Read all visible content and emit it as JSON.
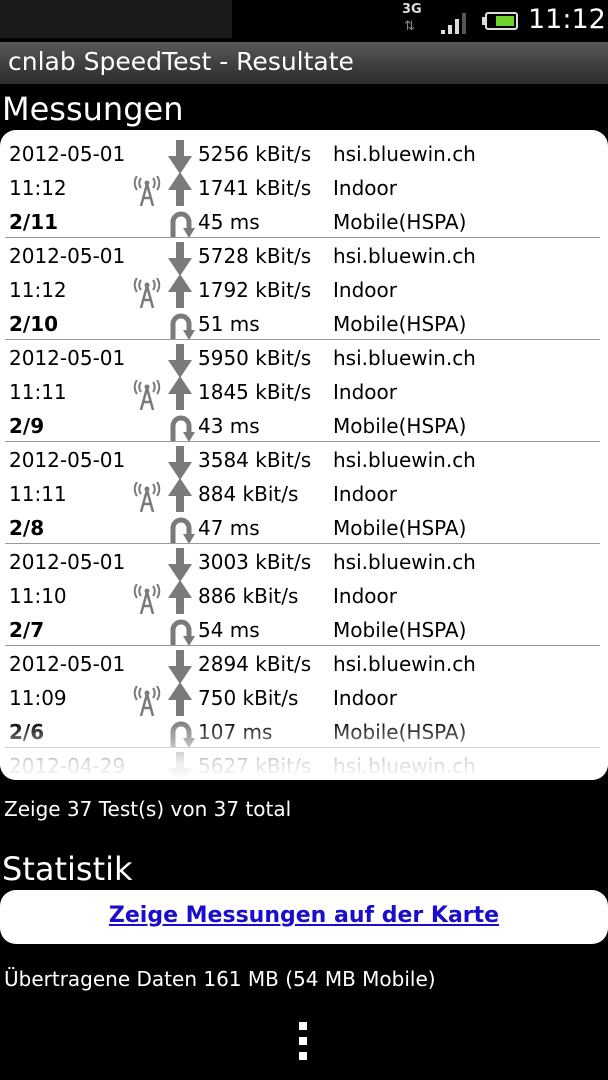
{
  "status_bar": {
    "network": "3G",
    "time": "11:12",
    "icons": [
      "3g-icon",
      "signal-icon",
      "battery-icon"
    ]
  },
  "title": "cnlab SpeedTest - Resultate",
  "measurements_heading": "Messungen",
  "measurements": [
    {
      "date": "2012-05-01",
      "time": "11:12",
      "index": "2/11",
      "download": "5256 kBit/s",
      "upload": "1741 kBit/s",
      "ping": "45 ms",
      "server": "hsi.bluewin.ch",
      "location": "Indoor",
      "network": "Mobile(HSPA)"
    },
    {
      "date": "2012-05-01",
      "time": "11:12",
      "index": "2/10",
      "download": "5728 kBit/s",
      "upload": "1792 kBit/s",
      "ping": "51 ms",
      "server": "hsi.bluewin.ch",
      "location": "Indoor",
      "network": "Mobile(HSPA)"
    },
    {
      "date": "2012-05-01",
      "time": "11:11",
      "index": "2/9",
      "download": "5950 kBit/s",
      "upload": "1845 kBit/s",
      "ping": "43 ms",
      "server": "hsi.bluewin.ch",
      "location": "Indoor",
      "network": "Mobile(HSPA)"
    },
    {
      "date": "2012-05-01",
      "time": "11:11",
      "index": "2/8",
      "download": "3584 kBit/s",
      "upload": "884 kBit/s",
      "ping": "47 ms",
      "server": "hsi.bluewin.ch",
      "location": "Indoor",
      "network": "Mobile(HSPA)"
    },
    {
      "date": "2012-05-01",
      "time": "11:10",
      "index": "2/7",
      "download": "3003 kBit/s",
      "upload": "886 kBit/s",
      "ping": "54 ms",
      "server": "hsi.bluewin.ch",
      "location": "Indoor",
      "network": "Mobile(HSPA)"
    },
    {
      "date": "2012-05-01",
      "time": "11:09",
      "index": "2/6",
      "download": "2894 kBit/s",
      "upload": "750 kBit/s",
      "ping": "107 ms",
      "server": "hsi.bluewin.ch",
      "location": "Indoor",
      "network": "Mobile(HSPA)"
    },
    {
      "date": "2012-04-29",
      "time": "",
      "index": "",
      "download": "5627 kBit/s",
      "upload": "",
      "ping": "",
      "server": "hsi.bluewin.ch",
      "location": "",
      "network": ""
    }
  ],
  "count_text": "Zeige 37 Test(s) von 37 total",
  "statistics_heading": "Statistik",
  "map_link": "Zeige Messungen auf der Karte",
  "data_transferred": "Übertragene Daten 161 MB (54 MB Mobile)",
  "colors": {
    "background": "#000000",
    "panel": "#ffffff",
    "link": "#1a0dcc",
    "icon_gray": "#7a7a7a"
  }
}
